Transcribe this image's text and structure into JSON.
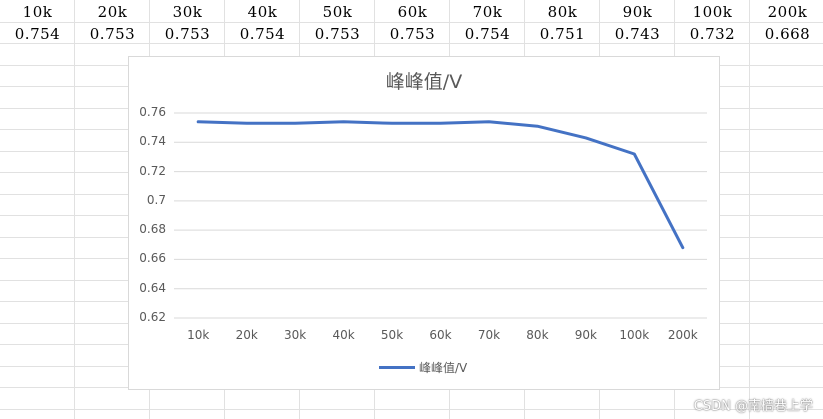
{
  "table": {
    "headers": [
      "10k",
      "20k",
      "30k",
      "40k",
      "50k",
      "60k",
      "70k",
      "80k",
      "90k",
      "100k",
      "200k"
    ],
    "values": [
      "0.754",
      "0.753",
      "0.753",
      "0.754",
      "0.753",
      "0.753",
      "0.754",
      "0.751",
      "0.743",
      "0.732",
      "0.668"
    ]
  },
  "chart_data": {
    "type": "line",
    "title": "峰峰值/V",
    "categories": [
      "10k",
      "20k",
      "30k",
      "40k",
      "50k",
      "60k",
      "70k",
      "80k",
      "90k",
      "100k",
      "200k"
    ],
    "series": [
      {
        "name": "峰峰值/V",
        "values": [
          0.754,
          0.753,
          0.753,
          0.754,
          0.753,
          0.753,
          0.754,
          0.751,
          0.743,
          0.732,
          0.668
        ],
        "color": "#4472c4"
      }
    ],
    "ylim": [
      0.62,
      0.76
    ],
    "yticks": [
      "0.62",
      "0.64",
      "0.66",
      "0.68",
      "0.7",
      "0.72",
      "0.74",
      "0.76"
    ],
    "grid": true,
    "legend": "bottom"
  },
  "watermark": "CSDN @南樯巷上学",
  "colors": {
    "gridline": "#d9d9d9",
    "cell_border": "#e1e1e1",
    "series": "#4472c4"
  }
}
